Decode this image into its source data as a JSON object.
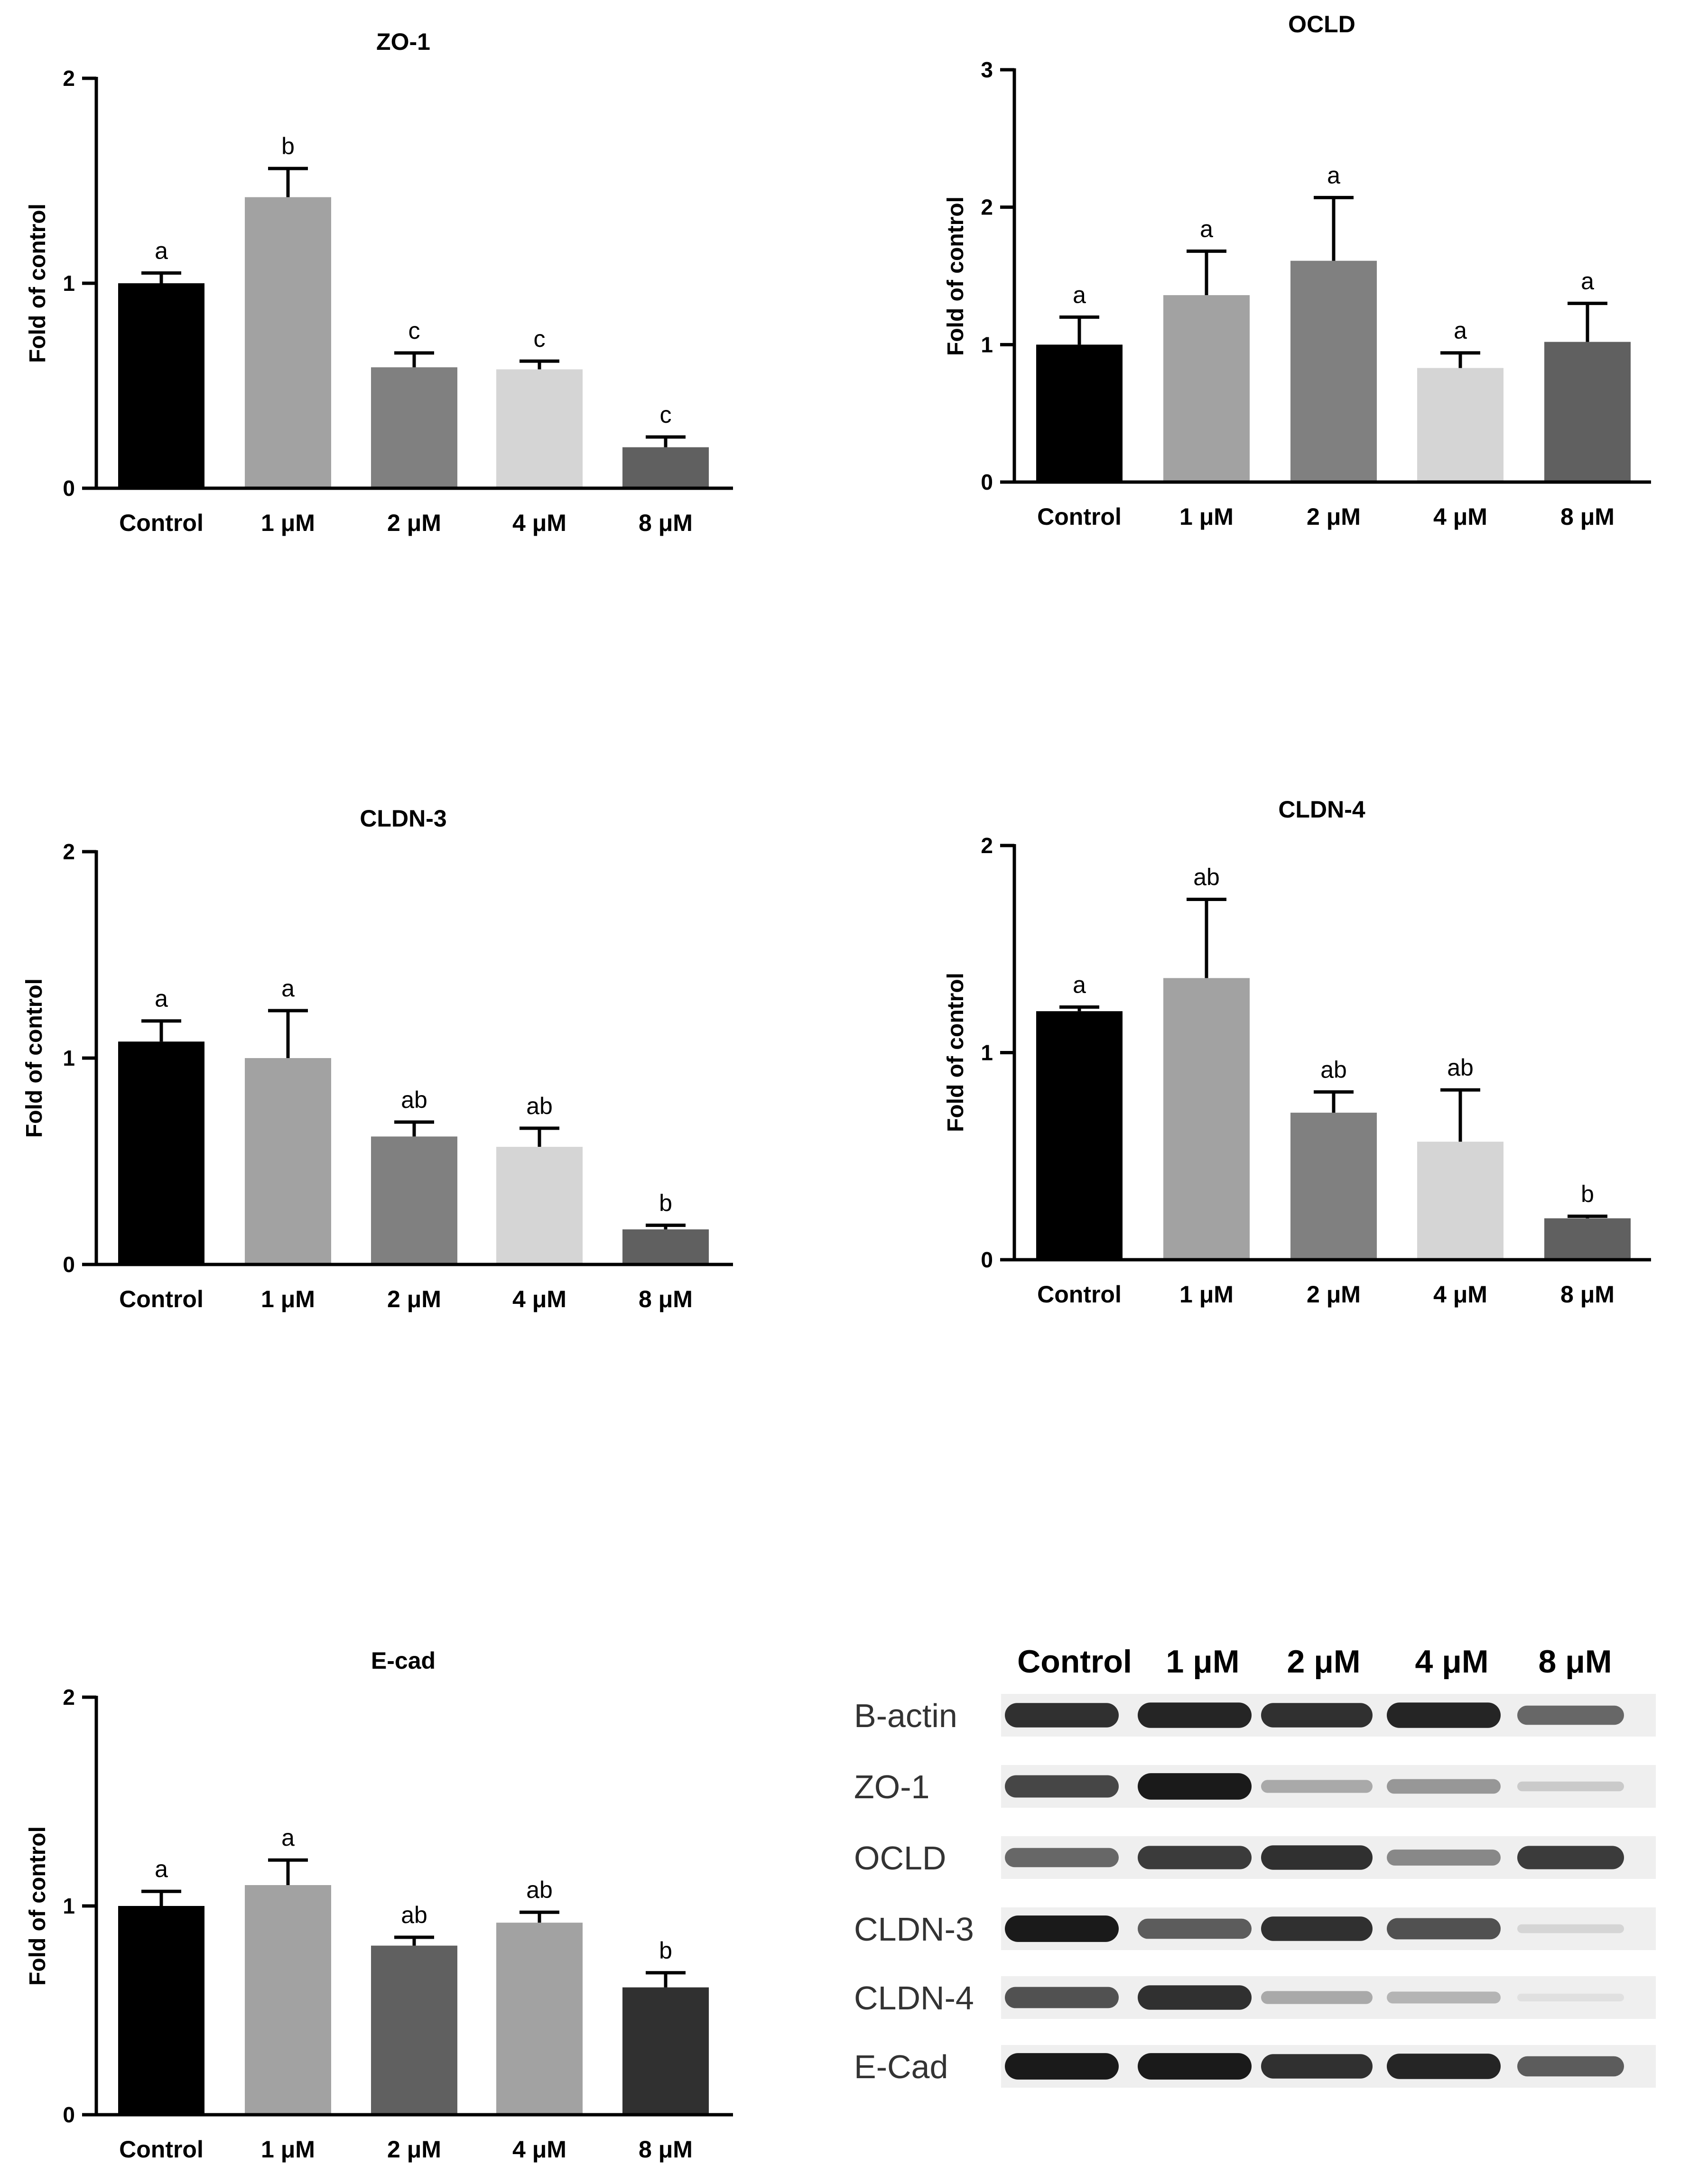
{
  "chart_data": [
    {
      "type": "bar",
      "title": "ZO-1",
      "ylabel": "Fold of control",
      "xlabel": "",
      "ylim": [
        0,
        2
      ],
      "yticks": [
        "0",
        "1",
        "2"
      ],
      "categories": [
        "Control",
        "1 μM",
        "2 μM",
        "4 μM",
        "8 μM"
      ],
      "values": [
        1.0,
        1.42,
        0.59,
        0.58,
        0.2
      ],
      "errors": [
        0.05,
        0.14,
        0.07,
        0.04,
        0.05
      ],
      "labels": [
        "a",
        "b",
        "c",
        "c",
        "c"
      ],
      "colors": [
        "#000000",
        "#a2a2a2",
        "#808080",
        "#d5d5d5",
        "#606060"
      ]
    },
    {
      "type": "bar",
      "title": "OCLD",
      "ylabel": "Fold of control",
      "xlabel": "",
      "ylim": [
        0,
        3
      ],
      "yticks": [
        "0",
        "1",
        "2",
        "3"
      ],
      "categories": [
        "Control",
        "1 μM",
        "2 μM",
        "4 μM",
        "8 μM"
      ],
      "values": [
        1.0,
        1.36,
        1.61,
        0.83,
        1.02
      ],
      "errors": [
        0.2,
        0.32,
        0.46,
        0.11,
        0.28
      ],
      "labels": [
        "a",
        "a",
        "a",
        "a",
        "a"
      ],
      "colors": [
        "#000000",
        "#a2a2a2",
        "#808080",
        "#d5d5d5",
        "#606060"
      ]
    },
    {
      "type": "bar",
      "title": "CLDN-3",
      "ylabel": "Fold of control",
      "xlabel": "",
      "ylim": [
        0,
        2
      ],
      "yticks": [
        "0",
        "1",
        "2"
      ],
      "categories": [
        "Control",
        "1 μM",
        "2 μM",
        "4 μM",
        "8 μM"
      ],
      "values": [
        1.08,
        1.0,
        0.62,
        0.57,
        0.17
      ],
      "errors": [
        0.1,
        0.23,
        0.07,
        0.09,
        0.02
      ],
      "labels": [
        "a",
        "a",
        "ab",
        "ab",
        "b"
      ],
      "colors": [
        "#000000",
        "#a2a2a2",
        "#808080",
        "#d5d5d5",
        "#606060"
      ]
    },
    {
      "type": "bar",
      "title": "CLDN-4",
      "ylabel": "Fold of control",
      "xlabel": "",
      "ylim": [
        0,
        2
      ],
      "yticks": [
        "0",
        "1",
        "2"
      ],
      "categories": [
        "Control",
        "1 μM",
        "2 μM",
        "4 μM",
        "8 μM"
      ],
      "values": [
        1.2,
        1.36,
        0.71,
        0.57,
        0.2
      ],
      "errors": [
        0.02,
        0.38,
        0.1,
        0.25,
        0.01
      ],
      "labels": [
        "a",
        "ab",
        "ab",
        "ab",
        "b"
      ],
      "colors": [
        "#000000",
        "#a2a2a2",
        "#808080",
        "#d5d5d5",
        "#606060"
      ]
    },
    {
      "type": "bar",
      "title": "E-cad",
      "ylabel": "Fold of control",
      "xlabel": "",
      "ylim": [
        0,
        2
      ],
      "yticks": [
        "0",
        "1",
        "2"
      ],
      "categories": [
        "Control",
        "1 μM",
        "2 μM",
        "4 μM",
        "8 μM"
      ],
      "values": [
        1.0,
        1.1,
        0.81,
        0.92,
        0.61
      ],
      "errors": [
        0.07,
        0.12,
        0.04,
        0.05,
        0.07
      ],
      "labels": [
        "a",
        "a",
        "ab",
        "ab",
        "b"
      ],
      "colors": [
        "#000000",
        "#a2a2a2",
        "#606060",
        "#a2a2a2",
        "#303030"
      ]
    }
  ],
  "western_blot": {
    "columns": [
      "Control",
      "1 μM",
      "2 μM",
      "4 μM",
      "8 μM"
    ],
    "rows": [
      {
        "label": "B-actin",
        "intensities": [
          0.85,
          0.9,
          0.85,
          0.9,
          0.6
        ]
      },
      {
        "label": "ZO-1",
        "intensities": [
          0.75,
          0.95,
          0.3,
          0.38,
          0.15
        ]
      },
      {
        "label": "OCLD",
        "intensities": [
          0.6,
          0.8,
          0.85,
          0.45,
          0.8
        ]
      },
      {
        "label": "CLDN-3",
        "intensities": [
          0.95,
          0.65,
          0.85,
          0.7,
          0.1
        ]
      },
      {
        "label": "CLDN-4",
        "intensities": [
          0.7,
          0.85,
          0.3,
          0.25,
          0.05
        ]
      },
      {
        "label": "E-Cad",
        "intensities": [
          0.95,
          0.95,
          0.85,
          0.9,
          0.65
        ]
      }
    ]
  }
}
